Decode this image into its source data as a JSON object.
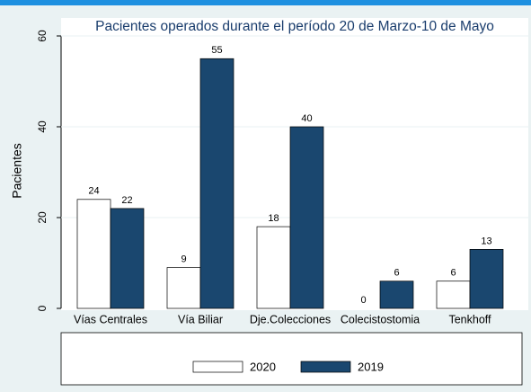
{
  "chart_data": {
    "type": "bar",
    "title": "Pacientes operados durante el período 20 de Marzo-10 de Mayo",
    "y_label": "Pacientes",
    "categories": [
      "Vías Centrales",
      "Vía Biliar",
      "Dje.Colecciones",
      "Colecistostomia",
      "Tenkhoff"
    ],
    "series": [
      {
        "name": "2020",
        "color": "#ffffff",
        "values": [
          24,
          9,
          18,
          0,
          6
        ]
      },
      {
        "name": "2019",
        "color": "#1a476f",
        "values": [
          22,
          55,
          40,
          6,
          13
        ]
      }
    ],
    "ylim": [
      0,
      60
    ],
    "yticks": [
      0,
      20,
      40,
      60
    ],
    "grid": true,
    "legend": "bottom"
  }
}
